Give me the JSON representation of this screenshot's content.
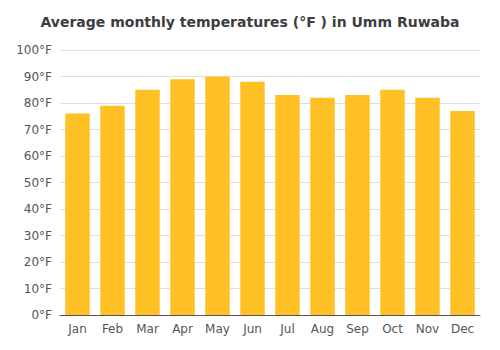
{
  "chart_data": {
    "type": "bar",
    "title": "Average monthly temperatures (°F ) in Umm Ruwaba",
    "categories": [
      "Jan",
      "Feb",
      "Mar",
      "Apr",
      "May",
      "Jun",
      "Jul",
      "Aug",
      "Sep",
      "Oct",
      "Nov",
      "Dec"
    ],
    "values": [
      76,
      79,
      85,
      89,
      90,
      88,
      83,
      82,
      83,
      85,
      82,
      77
    ],
    "color": "#FFC125",
    "ylim": [
      0,
      100
    ],
    "yticks": [
      {
        "value": 0,
        "label": "0°F"
      },
      {
        "value": 10,
        "label": "10°F"
      },
      {
        "value": 20,
        "label": "20°F"
      },
      {
        "value": 30,
        "label": "30°F"
      },
      {
        "value": 40,
        "label": "40°F"
      },
      {
        "value": 50,
        "label": "50°F"
      },
      {
        "value": 60,
        "label": "60°F"
      },
      {
        "value": 70,
        "label": "70°F"
      },
      {
        "value": 80,
        "label": "80°F"
      },
      {
        "value": 90,
        "label": "90°F"
      },
      {
        "value": 100,
        "label": "100°F"
      }
    ],
    "grid": true
  }
}
